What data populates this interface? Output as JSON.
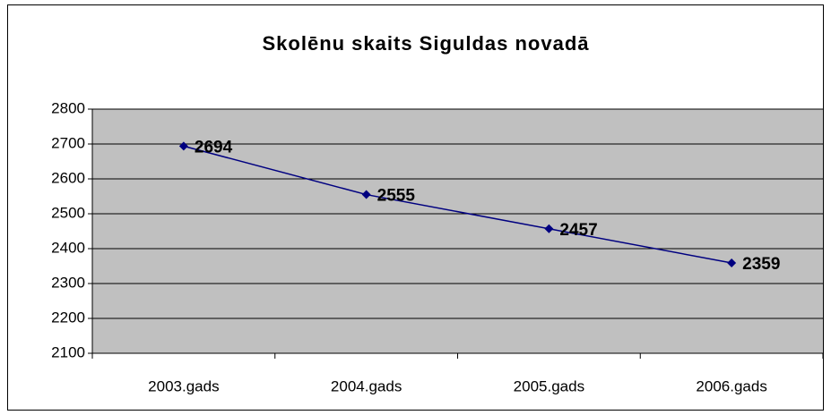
{
  "chart_data": {
    "type": "line",
    "title": "Skolēnu skaits Siguldas novadā",
    "categories": [
      "2003.gads",
      "2004.gads",
      "2005.gads",
      "2006.gads"
    ],
    "series": [
      {
        "name": "Skolēnu skaits",
        "color": "#000080",
        "values": [
          2694,
          2555,
          2457,
          2359
        ]
      }
    ],
    "ylim": [
      2100,
      2800
    ],
    "yticks": [
      2100,
      2200,
      2300,
      2400,
      2500,
      2600,
      2700,
      2800
    ],
    "grid": true,
    "plot_background": "#c0c0c0"
  }
}
